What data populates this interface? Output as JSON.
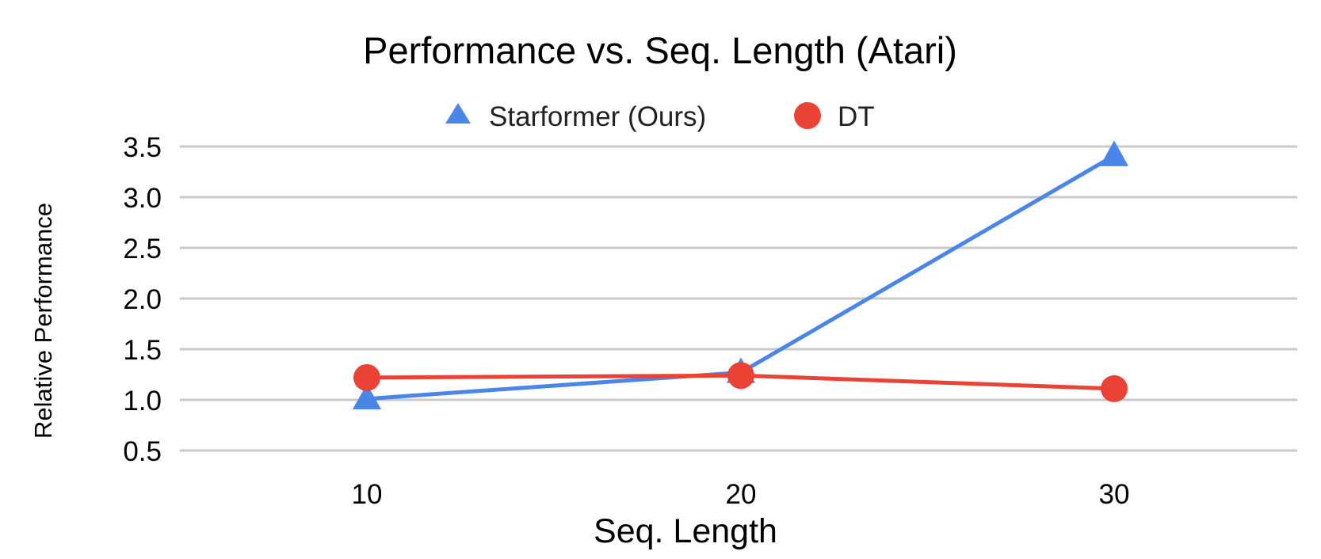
{
  "chart_data": {
    "type": "line",
    "title": "Performance vs. Seq. Length (Atari)",
    "xlabel": "Seq. Length",
    "ylabel": "Relative Performance",
    "categories": [
      "10",
      "20",
      "30"
    ],
    "ylim": [
      0.5,
      3.5
    ],
    "yticks": [
      "0.5",
      "1.0",
      "1.5",
      "2.0",
      "2.5",
      "3.0",
      "3.5"
    ],
    "grid": true,
    "legend_position": "top-center",
    "series": [
      {
        "name": "Starformer (Ours)",
        "marker": "triangle",
        "color": "#4a86e8",
        "values": [
          1.01,
          1.27,
          3.41
        ]
      },
      {
        "name": "DT",
        "marker": "circle",
        "color": "#ea4335",
        "values": [
          1.22,
          1.24,
          1.11
        ]
      }
    ]
  }
}
